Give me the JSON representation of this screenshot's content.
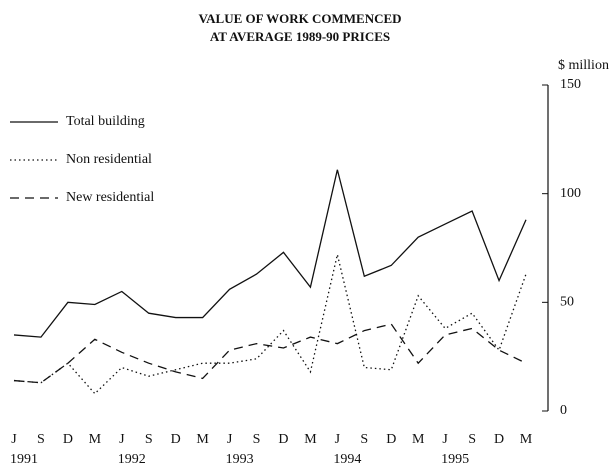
{
  "chart_data": {
    "type": "line",
    "title": [
      "VALUE OF WORK COMMENCED",
      "AT AVERAGE 1989-90 PRICES"
    ],
    "y_axis_label": "$ million",
    "categories": [
      "J",
      "S",
      "D",
      "M",
      "J",
      "S",
      "D",
      "M",
      "J",
      "S",
      "D",
      "M",
      "J",
      "S",
      "D",
      "M",
      "J",
      "S",
      "D",
      "M"
    ],
    "year_labels": [
      "1991",
      null,
      null,
      null,
      "1992",
      null,
      null,
      null,
      "1993",
      null,
      null,
      null,
      "1994",
      null,
      null,
      null,
      "1995",
      null,
      null,
      null
    ],
    "ylim": [
      0,
      150
    ],
    "yticks": [
      0,
      50,
      100,
      150
    ],
    "series": [
      {
        "name": "Total building",
        "color": "#111111",
        "dash": "solid",
        "values": [
          35,
          34,
          50,
          49,
          55,
          45,
          43,
          43,
          56,
          63,
          73,
          57,
          111,
          62,
          67,
          80,
          86,
          92,
          60,
          88
        ]
      },
      {
        "name": "Non residential",
        "color": "#111111",
        "dash": "dotted",
        "values": [
          14,
          13,
          22,
          8,
          20,
          16,
          19,
          22,
          22,
          24,
          37,
          18,
          72,
          20,
          19,
          53,
          38,
          45,
          28,
          63
        ]
      },
      {
        "name": "New residential",
        "color": "#111111",
        "dash": "dashed",
        "values": [
          14,
          13,
          22,
          33,
          27,
          22,
          18,
          15,
          28,
          31,
          29,
          34,
          31,
          37,
          40,
          22,
          35,
          38,
          28,
          22
        ]
      }
    ]
  }
}
